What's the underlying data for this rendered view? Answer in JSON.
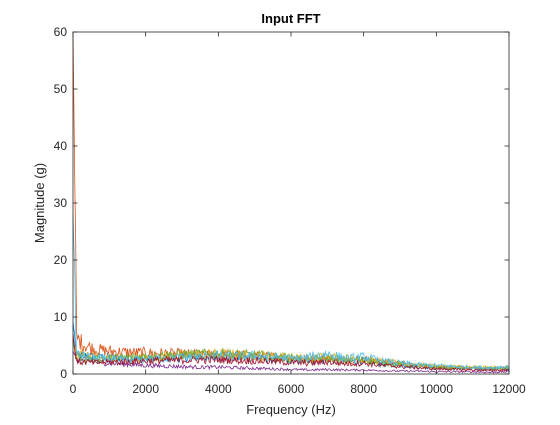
{
  "chart_data": {
    "type": "line",
    "title": "Input FFT",
    "xlabel": "Frequency (Hz)",
    "ylabel": "Magnitude (g)",
    "xlim": [
      0,
      12000
    ],
    "ylim": [
      0,
      60
    ],
    "xticks": [
      0,
      2000,
      4000,
      6000,
      8000,
      10000,
      12000
    ],
    "yticks": [
      0,
      10,
      20,
      30,
      40,
      50,
      60
    ],
    "xtick_labels": [
      "0",
      "2000",
      "4000",
      "6000",
      "8000",
      "10000",
      "12000"
    ],
    "ytick_labels": [
      "0",
      "10",
      "20",
      "30",
      "40",
      "50",
      "60"
    ],
    "grid": false,
    "legend": "none",
    "colors": [
      "#0072BD",
      "#D95319",
      "#EDB120",
      "#7E2F8E",
      "#77AC30",
      "#4DBEEE",
      "#A2142F"
    ],
    "series": [
      {
        "x": [
          0,
          100,
          300,
          600,
          1000,
          1500,
          2000,
          2500,
          3000,
          3500,
          4000,
          4500,
          5000,
          5500,
          6000,
          6500,
          7000,
          7500,
          8000,
          8500,
          9000,
          9500,
          10000,
          10500,
          11000,
          11500,
          12000
        ],
        "y": [
          9,
          3.0,
          3.2,
          3.0,
          2.9,
          2.8,
          2.7,
          2.8,
          2.9,
          3.0,
          3.1,
          2.9,
          2.8,
          2.6,
          2.4,
          2.2,
          2.5,
          2.1,
          2.3,
          1.8,
          1.6,
          1.3,
          1.1,
          1.0,
          0.9,
          0.8,
          0.9
        ]
      },
      {
        "x": [
          0,
          100,
          300,
          600,
          1000,
          1500,
          2000,
          2500,
          3000,
          3500,
          4000,
          4500,
          5000,
          5500,
          6000,
          6500,
          7000,
          7500,
          8000,
          8500,
          9000,
          9500,
          10000,
          10500,
          11000,
          11500,
          12000
        ],
        "y": [
          60,
          6.3,
          5.2,
          4.3,
          4.0,
          3.8,
          3.7,
          3.6,
          3.5,
          3.4,
          3.4,
          3.3,
          3.2,
          3.0,
          2.8,
          2.6,
          2.9,
          2.5,
          2.6,
          2.1,
          1.8,
          1.5,
          1.3,
          1.1,
          1.0,
          0.9,
          1.0
        ]
      },
      {
        "x": [
          0,
          100,
          300,
          600,
          1000,
          1500,
          2000,
          2500,
          3000,
          3500,
          4000,
          4500,
          5000,
          5500,
          6000,
          6500,
          7000,
          7500,
          8000,
          8500,
          9000,
          9500,
          10000,
          10500,
          11000,
          11500,
          12000
        ],
        "y": [
          5,
          3.6,
          3.4,
          3.0,
          2.8,
          2.7,
          2.8,
          3.0,
          3.2,
          3.4,
          3.5,
          3.4,
          3.1,
          3.2,
          2.9,
          2.7,
          3.2,
          2.8,
          2.6,
          2.2,
          1.9,
          1.6,
          1.4,
          1.3,
          1.2,
          1.1,
          1.2
        ]
      },
      {
        "x": [
          0,
          100,
          300,
          600,
          1000,
          1500,
          2000,
          2500,
          3000,
          3500,
          4000,
          4500,
          5000,
          5500,
          6000,
          6500,
          7000,
          7500,
          8000,
          8500,
          9000,
          9500,
          10000,
          10500,
          11000,
          11500,
          12000
        ],
        "y": [
          4,
          2.6,
          2.4,
          2.1,
          1.9,
          1.7,
          1.5,
          1.4,
          1.3,
          1.2,
          1.2,
          1.1,
          1.0,
          0.9,
          0.8,
          0.7,
          0.8,
          0.7,
          0.7,
          0.6,
          0.5,
          0.5,
          0.4,
          0.4,
          0.4,
          0.3,
          0.4
        ]
      },
      {
        "x": [
          0,
          100,
          300,
          600,
          1000,
          1500,
          2000,
          2500,
          3000,
          3500,
          4000,
          4500,
          5000,
          5500,
          6000,
          6500,
          7000,
          7500,
          8000,
          8500,
          9000,
          9500,
          10000,
          10500,
          11000,
          11500,
          12000
        ],
        "y": [
          6,
          2.9,
          2.7,
          2.6,
          2.7,
          2.9,
          3.1,
          3.3,
          3.4,
          3.5,
          3.6,
          3.4,
          3.3,
          3.1,
          2.8,
          2.5,
          2.8,
          2.4,
          2.5,
          2.0,
          1.7,
          1.4,
          1.2,
          1.1,
          1.0,
          1.0,
          1.1
        ]
      },
      {
        "x": [
          0,
          100,
          300,
          600,
          1000,
          1500,
          2000,
          2500,
          3000,
          3500,
          4000,
          4500,
          5000,
          5500,
          6000,
          6500,
          7000,
          7500,
          8000,
          8500,
          9000,
          9500,
          10000,
          10500,
          11000,
          11500,
          12000
        ],
        "y": [
          28,
          3.4,
          3.1,
          2.8,
          2.6,
          2.5,
          2.6,
          2.7,
          2.9,
          3.0,
          3.2,
          3.1,
          3.2,
          3.0,
          2.7,
          2.9,
          3.6,
          2.7,
          3.0,
          2.3,
          1.9,
          1.6,
          1.5,
          1.3,
          1.2,
          1.1,
          1.3
        ]
      },
      {
        "x": [
          0,
          100,
          300,
          600,
          1000,
          1500,
          2000,
          2500,
          3000,
          3500,
          4000,
          4500,
          5000,
          5500,
          6000,
          6500,
          7000,
          7500,
          8000,
          8500,
          9000,
          9500,
          10000,
          10500,
          11000,
          11500,
          12000
        ],
        "y": [
          7,
          2.2,
          2.1,
          2.0,
          2.1,
          2.2,
          2.3,
          2.4,
          2.4,
          2.5,
          2.5,
          2.4,
          2.3,
          2.2,
          2.0,
          1.9,
          2.1,
          1.8,
          1.9,
          1.5,
          1.3,
          1.1,
          0.9,
          0.8,
          0.7,
          0.6,
          0.7
        ]
      }
    ]
  }
}
